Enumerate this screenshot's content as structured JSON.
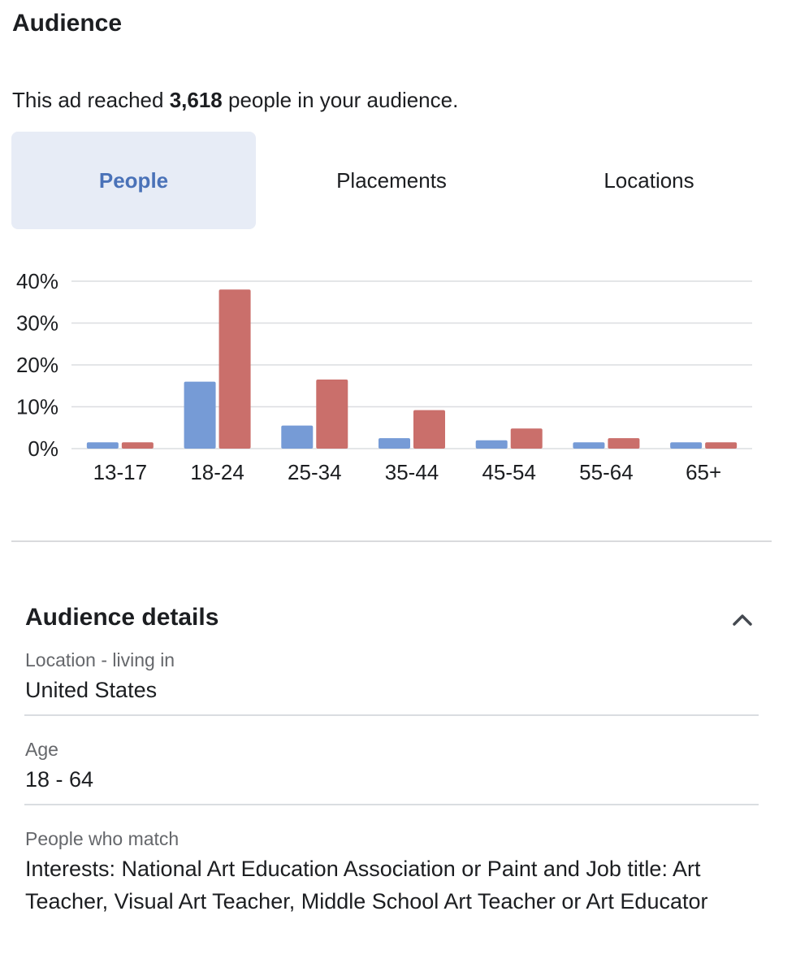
{
  "header": {
    "title": "Audience",
    "reach_prefix": "This ad reached",
    "reach_count": "3,618",
    "reach_suffix": "people in your audience."
  },
  "tabs": [
    {
      "label": "People",
      "active": true
    },
    {
      "label": "Placements",
      "active": false
    },
    {
      "label": "Locations",
      "active": false
    }
  ],
  "colors": {
    "accent": "#4a72b8",
    "series_a": "#769bd6",
    "series_b": "#ca6f6b",
    "gridline": "#dcdde0"
  },
  "chart_data": {
    "type": "bar",
    "categories": [
      "13-17",
      "18-24",
      "25-34",
      "35-44",
      "45-54",
      "55-64",
      "65+"
    ],
    "series": [
      {
        "values": [
          1.5,
          16,
          5.5,
          2.5,
          2,
          1.5,
          1.5
        ]
      },
      {
        "values": [
          1.5,
          38,
          16.5,
          9.2,
          4.8,
          2.5,
          1.5
        ]
      }
    ],
    "yticks": [
      "0%",
      "10%",
      "20%",
      "30%",
      "40%"
    ],
    "ylim": [
      0,
      40
    ]
  },
  "details": {
    "title": "Audience details",
    "collapse_icon": "chevron-up-icon",
    "items": [
      {
        "label": "Location - living in",
        "value": "United States"
      },
      {
        "label": "Age",
        "value": "18 - 64"
      },
      {
        "label": "People who match",
        "value": "Interests: National Art Education Association or Paint and Job title: Art Teacher, Visual Art Teacher, Middle School Art Teacher or Art Educator"
      }
    ]
  }
}
